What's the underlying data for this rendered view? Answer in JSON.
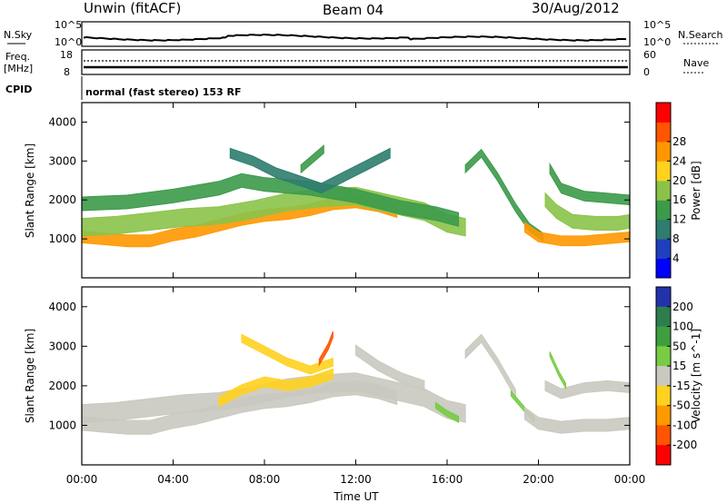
{
  "header": {
    "station": "Unwin (fitACF)",
    "beam": "Beam 04",
    "date": "30/Aug/2012"
  },
  "status_panels": {
    "nsky": {
      "label": "N.Sky",
      "ticks": [
        "10^5",
        "10^0"
      ]
    },
    "nsearch": {
      "label": "N.Search",
      "ticks": [
        "10^5",
        "10^0"
      ]
    },
    "freq": {
      "label": "Freq.",
      "unit": "[MHz]",
      "ticks": [
        "18",
        "8"
      ]
    },
    "nave": {
      "label": "Nave",
      "ticks": [
        "60",
        "0"
      ]
    },
    "cpid": {
      "label": "CPID",
      "value": "normal (fast stereo) 153 RF"
    }
  },
  "colors": {
    "power_scale": [
      "#0000ff",
      "#1f3fbf",
      "#2e7d6e",
      "#3c9a4a",
      "#8bc34a",
      "#ffd21f",
      "#ff9800",
      "#ff5500",
      "#ff0000"
    ],
    "velocity_scale": [
      "#2233aa",
      "#2e7d4f",
      "#3f9f3f",
      "#77cc44",
      "#c9c9c0",
      "#ffd21f",
      "#ff9900",
      "#ff5500",
      "#ff0000"
    ]
  },
  "chart_data": [
    {
      "type": "heatmap",
      "panel": "power",
      "xlabel": "",
      "ylabel": "Slant Range [km]",
      "xlim": [
        0,
        24
      ],
      "ylim": [
        0,
        4500
      ],
      "yticks": [
        "1000",
        "2000",
        "3000",
        "4000"
      ],
      "colorbar": {
        "label": "Power [dB]",
        "ticks": [
          "4",
          "8",
          "12",
          "16",
          "20",
          "24",
          "28"
        ]
      },
      "echo_bands": [
        {
          "level": 26,
          "points": [
            [
              0.0,
              1050
            ],
            [
              1.0,
              1000
            ],
            [
              2.0,
              950
            ],
            [
              3.0,
              950
            ],
            [
              4.0,
              1100
            ],
            [
              5.0,
              1200
            ],
            [
              6.0,
              1350
            ],
            [
              7.0,
              1500
            ],
            [
              8.0,
              1600
            ],
            [
              9.0,
              1650
            ],
            [
              10.0,
              1750
            ],
            [
              11.0,
              1900
            ],
            [
              12.0,
              1950
            ],
            [
              13.0,
              1850
            ],
            [
              13.8,
              1700
            ]
          ],
          "width": 300
        },
        {
          "level": 18,
          "points": [
            [
              0.0,
              1300
            ],
            [
              1.5,
              1350
            ],
            [
              3.0,
              1450
            ],
            [
              4.5,
              1550
            ],
            [
              6.0,
              1600
            ],
            [
              7.5,
              1750
            ],
            [
              9.0,
              1950
            ],
            [
              10.5,
              2050
            ],
            [
              12.0,
              2100
            ],
            [
              13.5,
              1900
            ],
            [
              15.0,
              1700
            ],
            [
              16.0,
              1400
            ],
            [
              16.8,
              1300
            ]
          ],
          "width": 450
        },
        {
          "level": 12,
          "points": [
            [
              0.0,
              1900
            ],
            [
              2.0,
              1950
            ],
            [
              4.0,
              2100
            ],
            [
              6.0,
              2300
            ],
            [
              7.0,
              2500
            ],
            [
              8.0,
              2400
            ],
            [
              10.0,
              2300
            ],
            [
              12.0,
              2100
            ],
            [
              14.0,
              1800
            ],
            [
              15.5,
              1650
            ],
            [
              16.5,
              1500
            ]
          ],
          "width": 350
        },
        {
          "level": 10,
          "points": [
            [
              6.5,
              3200
            ],
            [
              7.5,
              3000
            ],
            [
              8.5,
              2700
            ],
            [
              9.5,
              2500
            ],
            [
              10.5,
              2300
            ],
            [
              11.5,
              2600
            ],
            [
              12.5,
              2900
            ],
            [
              13.5,
              3200
            ]
          ],
          "width": 250
        },
        {
          "level": 12,
          "points": [
            [
              9.6,
              2800
            ],
            [
              10.0,
              3000
            ],
            [
              10.6,
              3300
            ]
          ],
          "width": 200
        },
        {
          "level": 12,
          "points": [
            [
              16.8,
              2800
            ],
            [
              17.5,
              3200
            ],
            [
              18.2,
              2600
            ],
            [
              19.0,
              1800
            ],
            [
              19.6,
              1300
            ],
            [
              20.2,
              1050
            ]
          ],
          "width": 200
        },
        {
          "level": 26,
          "points": [
            [
              19.4,
              1300
            ],
            [
              20.0,
              1050
            ],
            [
              21.0,
              950
            ],
            [
              22.0,
              950
            ],
            [
              23.0,
              1000
            ],
            [
              24.0,
              1050
            ]
          ],
          "width": 250
        },
        {
          "level": 16,
          "points": [
            [
              20.3,
              2000
            ],
            [
              20.8,
              1700
            ],
            [
              21.5,
              1450
            ],
            [
              22.5,
              1400
            ],
            [
              23.5,
              1400
            ],
            [
              24.0,
              1450
            ]
          ],
          "width": 350
        },
        {
          "level": 12,
          "points": [
            [
              20.5,
              2800
            ],
            [
              21.0,
              2300
            ],
            [
              22.0,
              2100
            ],
            [
              23.0,
              2050
            ],
            [
              24.0,
              2000
            ]
          ],
          "width": 250
        }
      ]
    },
    {
      "type": "heatmap",
      "panel": "velocity",
      "xlabel": "Time UT",
      "ylabel": "Slant Range [km]",
      "xlim": [
        0,
        24
      ],
      "ylim": [
        0,
        4500
      ],
      "xticks": [
        "00:00",
        "04:00",
        "08:00",
        "12:00",
        "16:00",
        "20:00",
        "00:00"
      ],
      "yticks": [
        "1000",
        "2000",
        "3000",
        "4000"
      ],
      "colorbar": {
        "label": "Velocity [m s^-1]",
        "ticks": [
          "200",
          "100",
          "50",
          "15",
          "-15",
          "-50",
          "-100",
          "-200"
        ]
      },
      "echo_bands": [
        {
          "level": 0,
          "points": [
            [
              0.0,
              1050
            ],
            [
              1.0,
              1000
            ],
            [
              2.0,
              950
            ],
            [
              3.0,
              950
            ],
            [
              4.0,
              1100
            ],
            [
              5.0,
              1200
            ],
            [
              6.0,
              1350
            ],
            [
              7.0,
              1500
            ],
            [
              8.0,
              1600
            ],
            [
              9.0,
              1650
            ],
            [
              10.0,
              1750
            ],
            [
              11.0,
              1900
            ],
            [
              12.0,
              1950
            ],
            [
              13.0,
              1850
            ],
            [
              13.8,
              1700
            ]
          ],
          "width": 350
        },
        {
          "level": 0,
          "points": [
            [
              0.0,
              1300
            ],
            [
              1.5,
              1350
            ],
            [
              3.0,
              1450
            ],
            [
              4.5,
              1550
            ],
            [
              6.0,
              1600
            ],
            [
              7.5,
              1750
            ],
            [
              9.0,
              1950
            ],
            [
              10.5,
              2050
            ],
            [
              12.0,
              2100
            ],
            [
              13.5,
              1900
            ],
            [
              15.0,
              1700
            ],
            [
              16.0,
              1400
            ],
            [
              16.8,
              1300
            ]
          ],
          "width": 450
        },
        {
          "level": -30,
          "points": [
            [
              6.0,
              1600
            ],
            [
              7.0,
              1900
            ],
            [
              8.0,
              2100
            ],
            [
              9.0,
              2000
            ],
            [
              10.0,
              2100
            ],
            [
              11.0,
              2300
            ]
          ],
          "width": 250
        },
        {
          "level": -40,
          "points": [
            [
              7.0,
              3200
            ],
            [
              8.0,
              2900
            ],
            [
              9.0,
              2600
            ],
            [
              10.0,
              2400
            ],
            [
              11.0,
              2600
            ]
          ],
          "width": 200
        },
        {
          "level": -150,
          "points": [
            [
              10.4,
              2600
            ],
            [
              10.8,
              3000
            ],
            [
              11.0,
              3300
            ]
          ],
          "width": 150
        },
        {
          "level": 0,
          "points": [
            [
              12.0,
              2900
            ],
            [
              13.0,
              2500
            ],
            [
              14.0,
              2200
            ],
            [
              15.0,
              2000
            ]
          ],
          "width": 250
        },
        {
          "level": 25,
          "points": [
            [
              15.5,
              1500
            ],
            [
              16.0,
              1300
            ],
            [
              16.5,
              1150
            ]
          ],
          "width": 150
        },
        {
          "level": 0,
          "points": [
            [
              16.8,
              2800
            ],
            [
              17.5,
              3200
            ],
            [
              18.2,
              2600
            ],
            [
              19.0,
              1800
            ]
          ],
          "width": 200
        },
        {
          "level": 25,
          "points": [
            [
              18.8,
              1800
            ],
            [
              19.4,
              1400
            ],
            [
              19.8,
              1150
            ]
          ],
          "width": 120
        },
        {
          "level": 0,
          "points": [
            [
              19.4,
              1300
            ],
            [
              20.0,
              1050
            ],
            [
              21.0,
              950
            ],
            [
              22.0,
              1000
            ],
            [
              23.0,
              1000
            ],
            [
              24.0,
              1050
            ]
          ],
          "width": 300
        },
        {
          "level": 0,
          "points": [
            [
              20.3,
              2000
            ],
            [
              21.0,
              1800
            ],
            [
              22.0,
              1950
            ],
            [
              23.0,
              2000
            ],
            [
              24.0,
              1950
            ]
          ],
          "width": 250
        },
        {
          "level": 25,
          "points": [
            [
              20.5,
              2800
            ],
            [
              20.9,
              2300
            ],
            [
              21.2,
              2000
            ]
          ],
          "width": 120
        }
      ]
    }
  ]
}
